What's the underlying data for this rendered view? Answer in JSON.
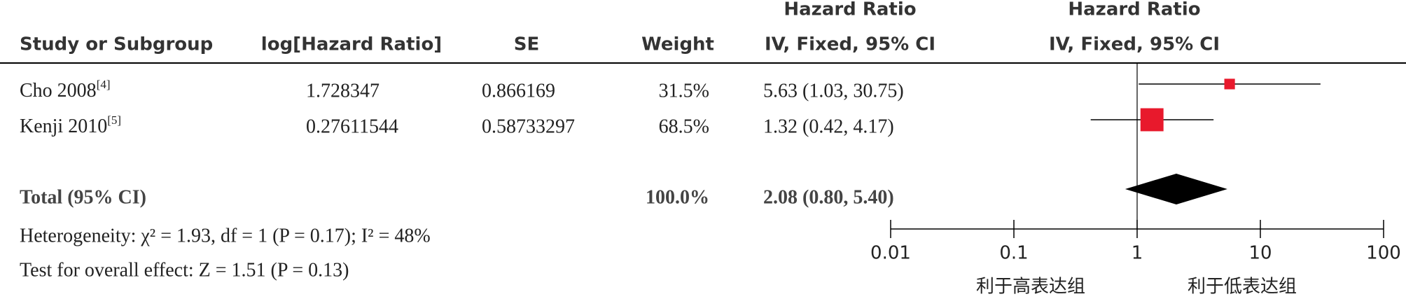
{
  "chart_data": {
    "type": "forest",
    "columns": {
      "study": "Study or Subgroup",
      "log_hr": "log[Hazard Ratio]",
      "se": "SE",
      "weight": "Weight",
      "effect_title": "Hazard Ratio",
      "effect_subtitle": "IV, Fixed, 95% CI"
    },
    "plot_title": "Hazard Ratio",
    "plot_subtitle": "IV, Fixed, 95% CI",
    "studies": [
      {
        "name": "Cho 2008",
        "ref": "[4]",
        "log_hr": 1.728347,
        "se": 0.866169,
        "weight": 31.5,
        "weight_label": "31.5%",
        "hr": 5.63,
        "ci_low": 1.03,
        "ci_high": 30.75,
        "hr_label": "5.63 (1.03, 30.75)"
      },
      {
        "name": "Kenji 2010",
        "ref": "[5]",
        "log_hr": 0.27611544,
        "se": 0.58733297,
        "weight": 68.5,
        "weight_label": "68.5%",
        "hr": 1.32,
        "ci_low": 0.42,
        "ci_high": 4.17,
        "hr_label": "1.32 (0.42, 4.17)"
      }
    ],
    "study_color": "#e8192c",
    "total": {
      "name": "Total (95% CI)",
      "weight": 100,
      "weight_label": "100.0%",
      "hr": 2.08,
      "ci_low": 0.8,
      "ci_high": 5.4,
      "hr_label": "2.08 (0.80, 5.40)"
    },
    "total_color": "#000000",
    "heterogeneity": "Heterogeneity: χ² = 1.93, df = 1 (P = 0.17); I² = 48%",
    "overall_effect": "Test for overall effect: Z = 1.51 (P = 0.13)",
    "log_scale": true,
    "xlim": [
      0.01,
      100
    ],
    "xticks": [
      0.01,
      0.1,
      1,
      10,
      100
    ],
    "x_labels": [
      "利于高表达组",
      "利于低表达组"
    ]
  }
}
